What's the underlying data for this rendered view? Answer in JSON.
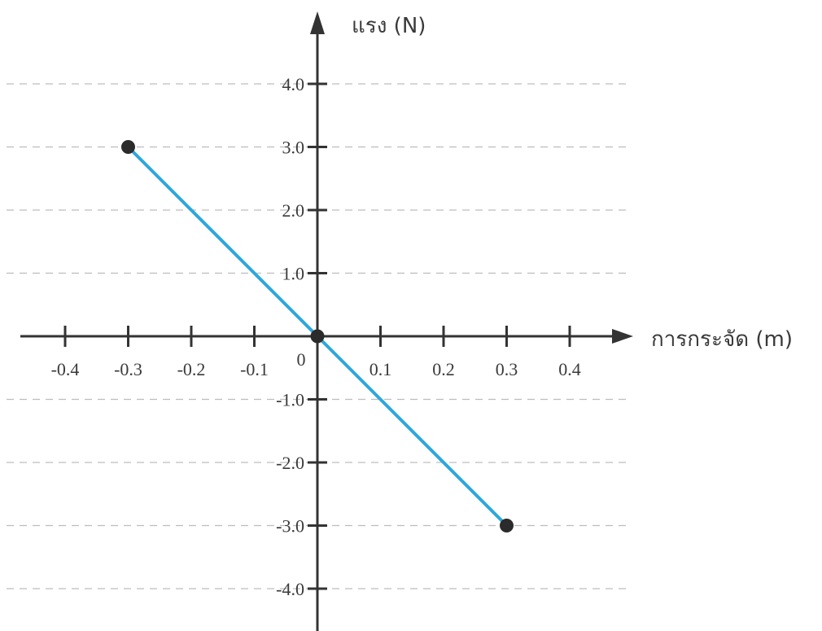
{
  "chart_data": {
    "type": "line",
    "xlabel": "การกระจัด (m)",
    "ylabel": "แรง (N)",
    "origin_label": "0",
    "xlim": [
      -0.5,
      0.5
    ],
    "ylim": [
      -4.5,
      5.0
    ],
    "x_ticks": [
      -0.4,
      -0.3,
      -0.2,
      -0.1,
      0.1,
      0.2,
      0.3,
      0.4
    ],
    "x_tick_labels": [
      "-0.4",
      "-0.3",
      "-0.2",
      "-0.1",
      "0.1",
      "0.2",
      "0.3",
      "0.4"
    ],
    "y_ticks": [
      4.0,
      3.0,
      2.0,
      1.0,
      -1.0,
      -2.0,
      -3.0,
      -4.0
    ],
    "y_tick_labels": [
      "4.0",
      "3.0",
      "2.0",
      "1.0",
      "-1.0",
      "-2.0",
      "-3.0",
      "-4.0"
    ],
    "grid": "horizontal dashed",
    "colors": {
      "line": "#2ea7dc",
      "points": "#2b2b2b",
      "axis": "#333333",
      "grid": "#bdbdbd"
    },
    "series": [
      {
        "x": [
          -0.3,
          0.0,
          0.3
        ],
        "y": [
          3.0,
          0.0,
          -3.0
        ]
      }
    ],
    "markers": [
      {
        "x": -0.3,
        "y": 3.0
      },
      {
        "x": 0.0,
        "y": 0.0
      },
      {
        "x": 0.3,
        "y": -3.0
      }
    ]
  }
}
